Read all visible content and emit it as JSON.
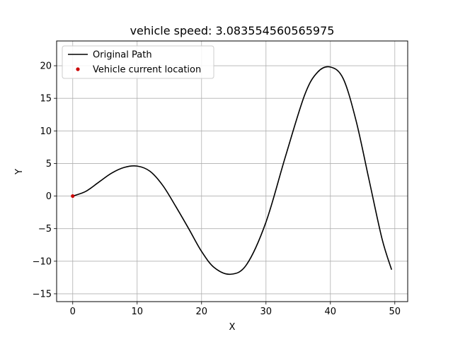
{
  "chart_data": {
    "type": "line",
    "title": "vehicle speed: 3.083554560565975",
    "xlabel": "X",
    "ylabel": "Y",
    "xlim": [
      -2.5,
      52
    ],
    "ylim": [
      -16.2,
      23.8
    ],
    "xticks": [
      0,
      10,
      20,
      30,
      40,
      50
    ],
    "yticks": [
      -15,
      -10,
      -5,
      0,
      5,
      10,
      15,
      20
    ],
    "grid": true,
    "legend_position": "top-left",
    "series": [
      {
        "name": "Original Path",
        "kind": "line",
        "color": "#000000",
        "x": [
          0,
          2,
          4,
          6,
          8,
          10,
          12,
          14,
          16,
          18,
          20,
          22,
          24.5,
          27,
          30,
          33,
          36,
          38,
          40,
          42,
          44,
          46,
          48,
          49.5
        ],
        "y": [
          0,
          0.7,
          2.1,
          3.5,
          4.4,
          4.6,
          3.8,
          1.6,
          -1.6,
          -5.0,
          -8.5,
          -11.0,
          -12.0,
          -10.5,
          -4.0,
          6.0,
          15.5,
          19.0,
          19.8,
          18.0,
          11.5,
          2.5,
          -6.5,
          -11.3
        ]
      },
      {
        "name": "Vehicle current location",
        "kind": "point",
        "color": "#cc0000",
        "x": [
          0
        ],
        "y": [
          0
        ]
      }
    ]
  }
}
